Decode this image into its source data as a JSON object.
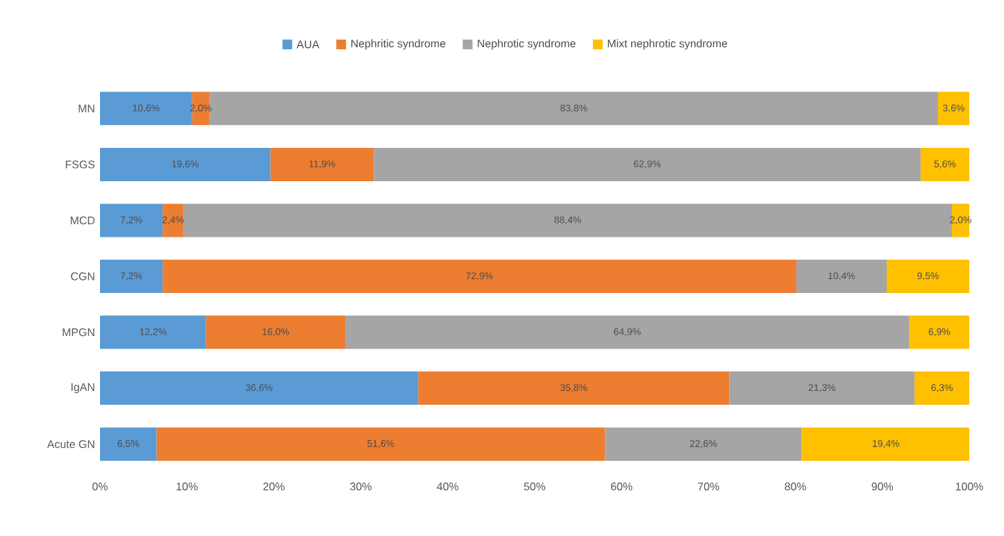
{
  "chart_data": {
    "type": "bar",
    "orientation": "horizontal",
    "stacked": true,
    "legend": "top",
    "grid": false,
    "categories": [
      "MN",
      "FSGS",
      "MCD",
      "CGN",
      "MPGN",
      "IgAN",
      "Acute GN"
    ],
    "series": [
      {
        "name": "AUA",
        "color": "#5b9bd5",
        "values": [
          10.6,
          19.6,
          7.2,
          7.2,
          12.2,
          36.6,
          6.5
        ],
        "value_labels": [
          "10,6%",
          "19,6%",
          "7,2%",
          "7,2%",
          "12,2%",
          "36,6%",
          "6,5%"
        ]
      },
      {
        "name": "Nephritic syndrome",
        "color": "#ed7d31",
        "values": [
          2.0,
          11.9,
          2.4,
          72.9,
          16.0,
          35.8,
          51.6
        ],
        "value_labels": [
          "2,0%",
          "11,9%",
          "2,4%",
          "72,9%",
          "16,0%",
          "35,8%",
          "51,6%"
        ]
      },
      {
        "name": "Nephrotic syndrome",
        "color": "#a5a5a5",
        "values": [
          83.8,
          62.9,
          88.4,
          10.4,
          64.9,
          21.3,
          22.6
        ],
        "value_labels": [
          "83,8%",
          "62,9%",
          "88,4%",
          "10,4%",
          "64,9%",
          "21,3%",
          "22,6%"
        ]
      },
      {
        "name": "Mixt nephrotic syndrome",
        "color": "#ffc000",
        "values": [
          3.6,
          5.6,
          2.0,
          9.5,
          6.9,
          6.3,
          19.4
        ],
        "value_labels": [
          "3,6%",
          "5,6%",
          "2,0%",
          "9,5%",
          "6,9%",
          "6,3%",
          "19,4%"
        ]
      }
    ],
    "xlim": [
      0,
      100
    ],
    "xticks": [
      {
        "value": 0,
        "label": "0%"
      },
      {
        "value": 10,
        "label": "10%"
      },
      {
        "value": 20,
        "label": "20%"
      },
      {
        "value": 30,
        "label": "30%"
      },
      {
        "value": 40,
        "label": "40%"
      },
      {
        "value": 50,
        "label": "50%"
      },
      {
        "value": 60,
        "label": "60%"
      },
      {
        "value": 70,
        "label": "70%"
      },
      {
        "value": 80,
        "label": "80%"
      },
      {
        "value": 90,
        "label": "90%"
      },
      {
        "value": 100,
        "label": "100%"
      }
    ]
  }
}
